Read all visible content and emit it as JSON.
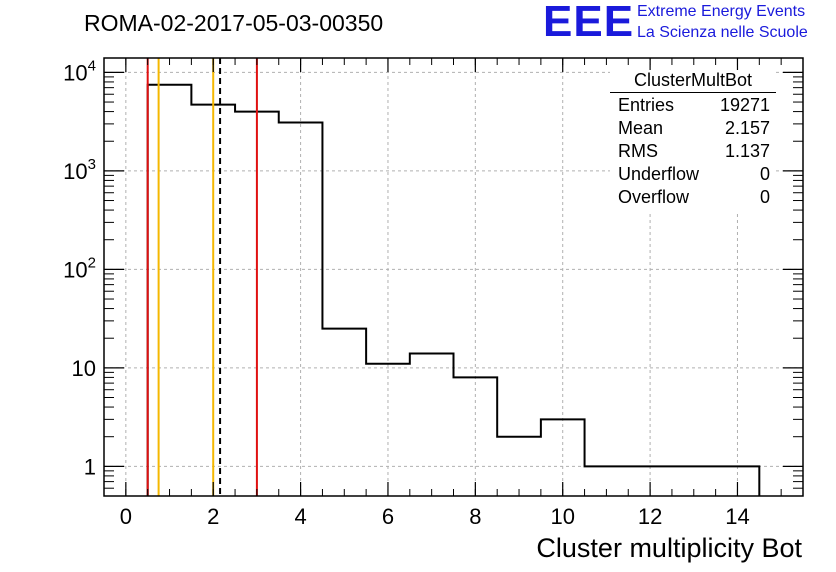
{
  "title": "ROMA-02-2017-05-03-00350",
  "logo": {
    "text": "EEE",
    "line1": "Extreme Energy Events",
    "line2": "La Scienza nelle Scuole"
  },
  "stats": {
    "name": "ClusterMultBot",
    "rows": [
      {
        "label": "Entries",
        "value": "19271"
      },
      {
        "label": "Mean",
        "value": "2.157"
      },
      {
        "label": "RMS",
        "value": "1.137"
      },
      {
        "label": "Underflow",
        "value": "0"
      },
      {
        "label": "Overflow",
        "value": "0"
      }
    ]
  },
  "colors": {
    "histogram": "#000000",
    "red_lines": "#e01010",
    "orange_lines": "#f5b800",
    "mean_line": "#000000",
    "grid": "#b0b0b0"
  },
  "chart_data": {
    "type": "histogram",
    "title": "ROMA-02-2017-05-03-00350",
    "xlabel": "Cluster multiplicity Bot",
    "ylabel": "",
    "xlim": [
      -0.5,
      15.5
    ],
    "ylim": [
      0.5,
      14000
    ],
    "yscale": "log",
    "grid": true,
    "bin_edges": [
      0.5,
      1.5,
      2.5,
      3.5,
      4.5,
      5.5,
      6.5,
      7.5,
      8.5,
      9.5,
      10.5,
      11.5,
      12.5,
      13.5,
      14.5
    ],
    "counts": [
      7500,
      4700,
      4000,
      3100,
      25,
      11,
      14,
      8,
      2,
      3,
      1,
      1,
      1,
      1
    ],
    "x_ticks": [
      "0",
      "2",
      "4",
      "6",
      "8",
      "10",
      "12",
      "14"
    ],
    "y_ticks": [
      "1",
      "10",
      "10^2",
      "10^3",
      "10^4"
    ],
    "vertical_lines": [
      {
        "x": 0.5,
        "color": "red"
      },
      {
        "x": 3.0,
        "color": "red"
      },
      {
        "x": 0.75,
        "color": "orange"
      },
      {
        "x": 2.0,
        "color": "orange"
      },
      {
        "x": 2.157,
        "color": "black",
        "style": "dashed"
      }
    ]
  }
}
